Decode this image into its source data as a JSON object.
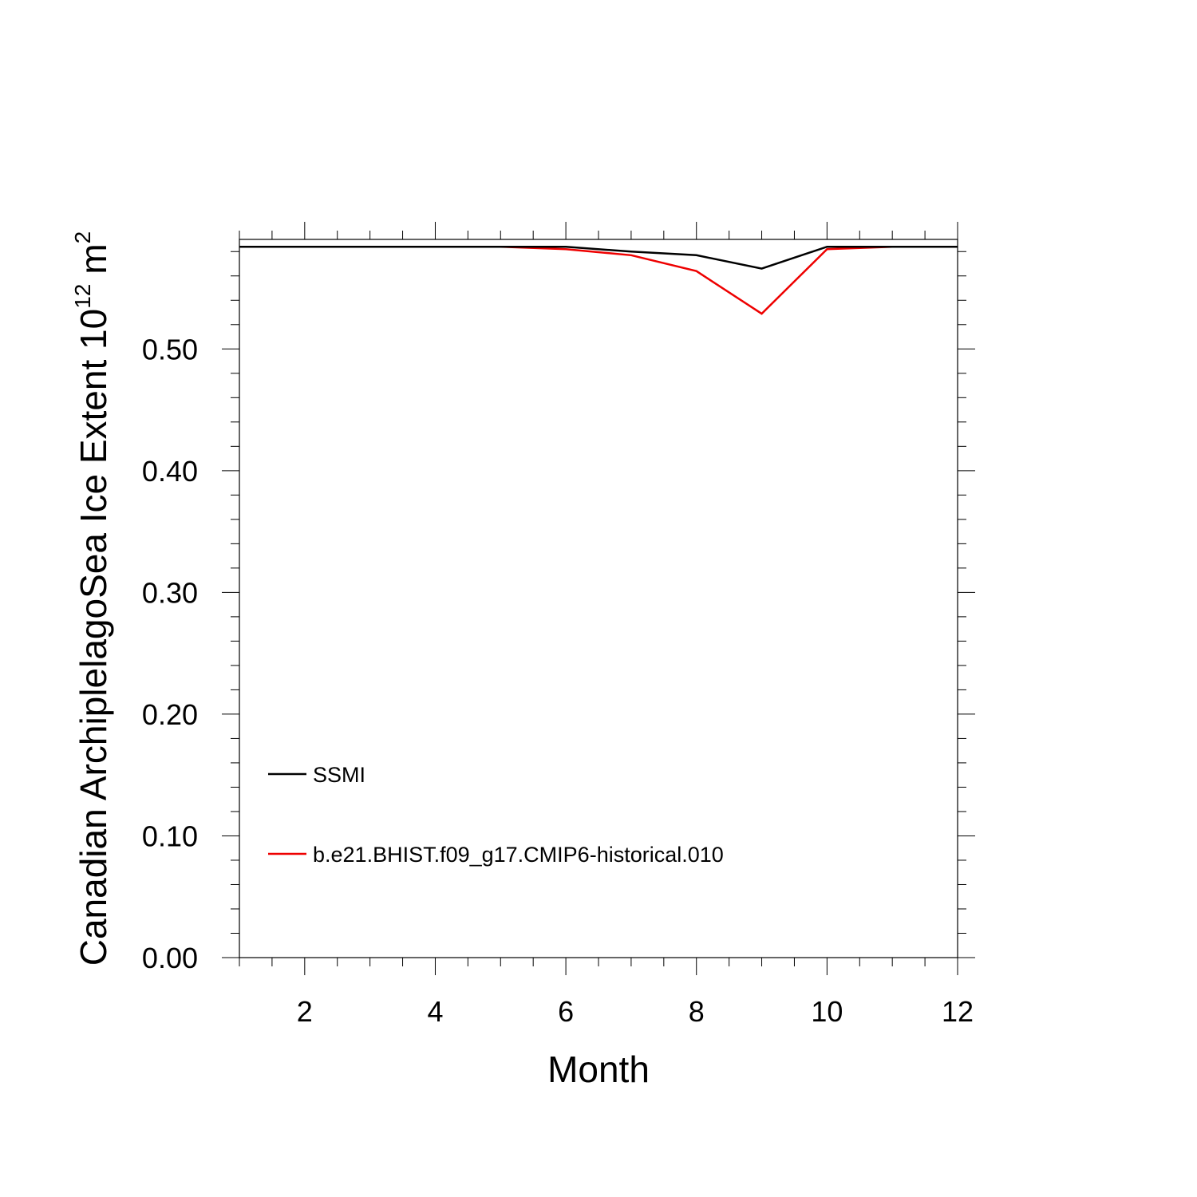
{
  "chart_data": {
    "type": "line",
    "xlabel": "Month",
    "ylabel": "Canadian ArchiplelagoSea Ice Extent 10",
    "ylabel_superscript": "12",
    "ylabel_unit": "m",
    "ylabel_unit_superscript": "2",
    "xlim": [
      1,
      12
    ],
    "ylim": [
      0,
      0.59
    ],
    "x_ticks": [
      2,
      4,
      6,
      8,
      10,
      12
    ],
    "x_tick_labels": [
      "2",
      "4",
      "6",
      "8",
      "10",
      "12"
    ],
    "y_ticks": [
      0,
      0.1,
      0.2,
      0.3,
      0.4,
      0.5
    ],
    "y_tick_labels": [
      "0.00",
      "0.10",
      "0.20",
      "0.30",
      "0.40",
      "0.50"
    ],
    "x": [
      1,
      2,
      3,
      4,
      5,
      6,
      7,
      8,
      9,
      10,
      11,
      12
    ],
    "series": [
      {
        "name": "SSMI",
        "color": "#000000",
        "values": [
          0.584,
          0.584,
          0.584,
          0.584,
          0.584,
          0.584,
          0.58,
          0.577,
          0.566,
          0.584,
          0.584,
          0.584
        ]
      },
      {
        "name": "b.e21.BHIST.f09_g17.CMIP6-historical.010",
        "color": "#ee0000",
        "values": [
          0.584,
          0.584,
          0.584,
          0.584,
          0.584,
          0.582,
          0.577,
          0.564,
          0.529,
          0.582,
          0.584,
          0.584
        ]
      }
    ],
    "grid": false,
    "legend_position": "lower-left"
  }
}
